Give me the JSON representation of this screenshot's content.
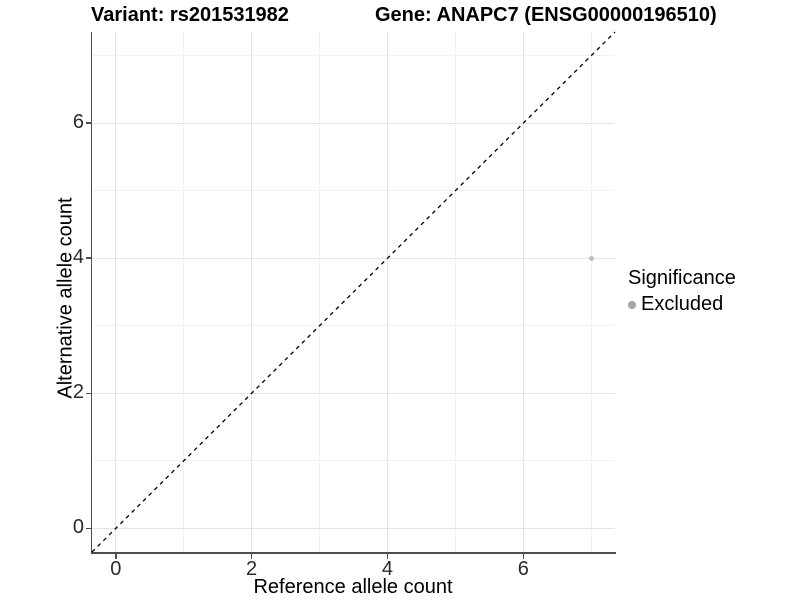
{
  "chart_data": {
    "type": "scatter",
    "titles": {
      "variant": "Variant: rs201531982",
      "gene": "Gene: ANAPC7 (ENSG00000196510)"
    },
    "xlabel": "Reference allele count",
    "ylabel": "Alternative allele count",
    "xlim": [
      -0.35,
      7.35
    ],
    "ylim": [
      -0.35,
      7.35
    ],
    "x_major_ticks": [
      0,
      2,
      4,
      6
    ],
    "x_minor_ticks": [
      1,
      3,
      5,
      7
    ],
    "y_major_ticks": [
      0,
      2,
      4,
      6
    ],
    "y_minor_ticks": [
      1,
      3,
      5,
      7
    ],
    "grid": true,
    "background": "#ffffff",
    "gridline_major_color": "#e4e4e4",
    "gridline_minor_color": "#f1f1f1",
    "axis_color": "#4d4d4d",
    "reference_line": {
      "type": "abline",
      "slope": 1,
      "intercept": 0,
      "style": "dashed",
      "color": "#000000"
    },
    "series": [
      {
        "name": "Excluded",
        "color": "#c0c0c0",
        "point_radius": 2.5,
        "points": [
          {
            "x": 7,
            "y": 4
          }
        ]
      }
    ],
    "legend": {
      "title": "Significance",
      "position": "right",
      "entries": [
        {
          "label": "Excluded",
          "color": "#a4a4a4"
        }
      ]
    }
  }
}
